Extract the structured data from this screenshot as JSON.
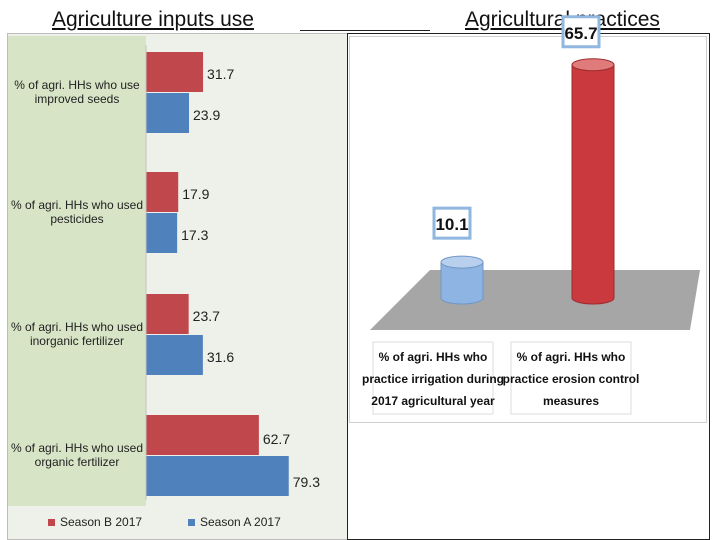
{
  "headings": {
    "left": "Agriculture inputs use",
    "right": "Agricultural practices"
  },
  "colors": {
    "season_b": "#c0474b",
    "season_a": "#4f81bd",
    "cyl_red": "#c9393d",
    "cyl_blue": "#8eb4e3"
  },
  "chart_data": [
    {
      "type": "bar",
      "orientation": "horizontal",
      "categories": [
        "% of agri. HHs who use improved seeds",
        "% of agri. HHs who used pesticides",
        "% of agri. HHs who used inorganic fertilizer",
        "% of agri. HHs  who used organic fertilizer"
      ],
      "series": [
        {
          "name": "Season B  2017",
          "values": [
            31.7,
            17.9,
            23.7,
            62.7
          ]
        },
        {
          "name": "Season A 2017",
          "values": [
            23.9,
            17.3,
            31.6,
            79.3
          ]
        }
      ],
      "value_labels_b": [
        "31.7",
        "17.9",
        "23.7",
        "62.7"
      ],
      "value_labels_a": [
        "23.9",
        "17.3",
        "31.6",
        "79.3"
      ],
      "legend": "bottom",
      "grid": false
    },
    {
      "type": "bar",
      "style": "3d-cylinder",
      "categories": [
        "% of agri. HHs  who practice irrigation during 2017 agricultural year",
        "% of agri. HHs who practice erosion control measures"
      ],
      "category_lines": [
        [
          "% of agri. HHs  who",
          "practice irrigation during",
          "2017 agricultural year"
        ],
        [
          "% of agri. HHs who",
          "practice erosion control",
          "measures"
        ]
      ],
      "values": [
        10.1,
        65.7
      ],
      "value_labels": [
        "10.1",
        "65.7"
      ],
      "ylim": [
        0,
        70
      ],
      "grid": false
    }
  ]
}
